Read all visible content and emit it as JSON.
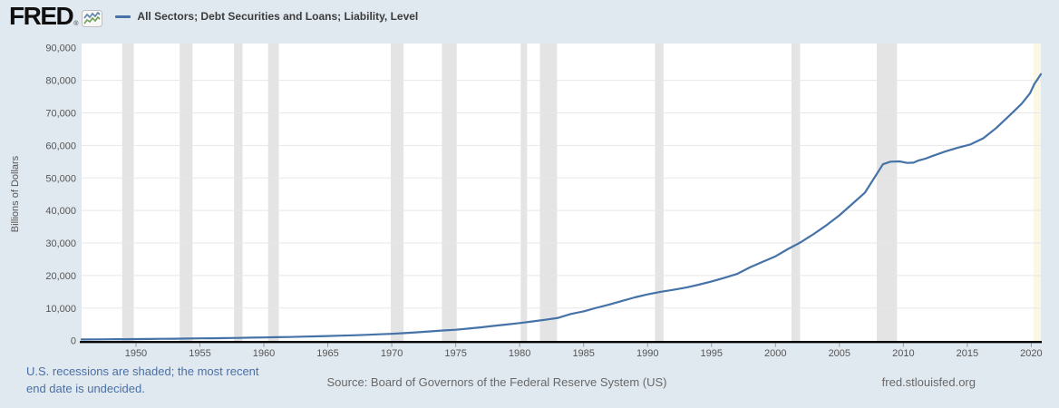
{
  "header": {
    "logo_text": "FRED",
    "logo_registered": "®",
    "legend_label": "All Sectors; Debt Securities and Loans; Liability, Level"
  },
  "footer": {
    "recession_note_line1": "U.S. recessions are shaded; the most recent",
    "recession_note_line2": "end date is undecided.",
    "source": "Source: Board of Governors of the Federal Reserve System (US)",
    "site": "fred.stlouisfed.org"
  },
  "icons": {
    "fred-sparkline-icon": "small framed chart with blue and green rising zigzag lines",
    "legend-line-swatch": "short horizontal blue line sample"
  },
  "colors": {
    "background": "#e1e9f0",
    "plot_background": "#ffffff",
    "gridline": "#e7e7e7",
    "recession_band": "#e4e4e4",
    "recession_band_ongoing": "#faf7e4",
    "series_line": "#4572a7",
    "axis_line": "#000000",
    "tick_mark": "#999999",
    "tick_label": "#555555",
    "footer_link": "#4a6fa5",
    "footer_text": "#686868"
  },
  "chart_data": {
    "type": "line",
    "title": "All Sectors; Debt Securities and Loans; Liability, Level",
    "xlabel": "",
    "ylabel": "Billions of Dollars",
    "x_unit": "year (quarterly observations, 1945 Q4 – 2020 Q4)",
    "y_unit": "billions of US dollars",
    "xlim": [
      1945.75,
      2020.75
    ],
    "ylim": [
      0,
      90000
    ],
    "x_ticks": [
      1950,
      1955,
      1960,
      1965,
      1970,
      1975,
      1980,
      1985,
      1990,
      1995,
      2000,
      2005,
      2010,
      2015,
      2020
    ],
    "y_ticks": [
      0,
      10000,
      20000,
      30000,
      40000,
      50000,
      60000,
      70000,
      80000,
      90000
    ],
    "grid": "horizontal gridlines only",
    "legend_position": "top-left, outside plot",
    "series": [
      {
        "name": "All Sectors; Debt Securities and Loans; Liability, Level",
        "color": "#4572a7",
        "points": [
          [
            1945.75,
            360
          ],
          [
            1947,
            395
          ],
          [
            1948,
            420
          ],
          [
            1949,
            440
          ],
          [
            1950,
            475
          ],
          [
            1951,
            515
          ],
          [
            1952,
            555
          ],
          [
            1953,
            595
          ],
          [
            1954,
            635
          ],
          [
            1955,
            685
          ],
          [
            1956,
            735
          ],
          [
            1957,
            790
          ],
          [
            1958,
            845
          ],
          [
            1959,
            910
          ],
          [
            1960,
            975
          ],
          [
            1961,
            1045
          ],
          [
            1962,
            1125
          ],
          [
            1963,
            1215
          ],
          [
            1964,
            1315
          ],
          [
            1965,
            1425
          ],
          [
            1966,
            1535
          ],
          [
            1967,
            1655
          ],
          [
            1968,
            1795
          ],
          [
            1969,
            1945
          ],
          [
            1970,
            2095
          ],
          [
            1971,
            2300
          ],
          [
            1972,
            2550
          ],
          [
            1973,
            2840
          ],
          [
            1974,
            3130
          ],
          [
            1975,
            3350
          ],
          [
            1976,
            3700
          ],
          [
            1977,
            4100
          ],
          [
            1978,
            4550
          ],
          [
            1979,
            4950
          ],
          [
            1980,
            5400
          ],
          [
            1981,
            5900
          ],
          [
            1982,
            6400
          ],
          [
            1983,
            7000
          ],
          [
            1984,
            8200
          ],
          [
            1985,
            9000
          ],
          [
            1986,
            10100
          ],
          [
            1987,
            11100
          ],
          [
            1988,
            12200
          ],
          [
            1989,
            13300
          ],
          [
            1990,
            14200
          ],
          [
            1991,
            15000
          ],
          [
            1992,
            15600
          ],
          [
            1993,
            16300
          ],
          [
            1994,
            17200
          ],
          [
            1995,
            18200
          ],
          [
            1996,
            19300
          ],
          [
            1997,
            20500
          ],
          [
            1998,
            22500
          ],
          [
            1999,
            24200
          ],
          [
            2000,
            25900
          ],
          [
            2001,
            28200
          ],
          [
            2002,
            30300
          ],
          [
            2003,
            32800
          ],
          [
            2004,
            35500
          ],
          [
            2005,
            38500
          ],
          [
            2006,
            42000
          ],
          [
            2007,
            45500
          ],
          [
            2008.4,
            54200
          ],
          [
            2009,
            55000
          ],
          [
            2009.7,
            55100
          ],
          [
            2010.3,
            54600
          ],
          [
            2010.8,
            54700
          ],
          [
            2011.2,
            55400
          ],
          [
            2011.7,
            55900
          ],
          [
            2012.25,
            56700
          ],
          [
            2013.25,
            58100
          ],
          [
            2014.25,
            59300
          ],
          [
            2015.25,
            60300
          ],
          [
            2016.25,
            62200
          ],
          [
            2017.25,
            65300
          ],
          [
            2018.25,
            69000
          ],
          [
            2019.25,
            72800
          ],
          [
            2019.9,
            76000
          ],
          [
            2020.25,
            78900
          ],
          [
            2020.5,
            80400
          ],
          [
            2020.75,
            81900
          ]
        ]
      }
    ],
    "recessions": [
      {
        "start": 1948.92,
        "end": 1949.83
      },
      {
        "start": 1953.42,
        "end": 1954.42
      },
      {
        "start": 1957.67,
        "end": 1958.33
      },
      {
        "start": 1960.33,
        "end": 1961.17
      },
      {
        "start": 1969.92,
        "end": 1970.92
      },
      {
        "start": 1973.92,
        "end": 1975.08
      },
      {
        "start": 1980.08,
        "end": 1980.58
      },
      {
        "start": 1981.58,
        "end": 1982.92
      },
      {
        "start": 1990.58,
        "end": 1991.25
      },
      {
        "start": 2001.25,
        "end": 2001.92
      },
      {
        "start": 2007.92,
        "end": 2009.5
      },
      {
        "start": 2020.17,
        "end": 2020.75,
        "ongoing": true
      }
    ]
  }
}
